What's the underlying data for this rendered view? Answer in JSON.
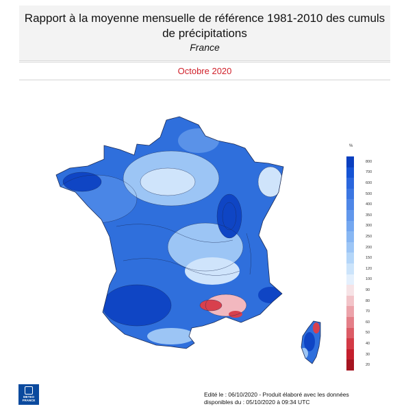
{
  "header": {
    "title": "Rapport à la moyenne mensuelle de référence 1981-2010 des cumuls de précipitations",
    "subtitle": "France"
  },
  "period": "Octobre 2020",
  "legend": {
    "unit": "%",
    "levels": [
      {
        "label": "800",
        "color": "#0a3fbf"
      },
      {
        "label": "700",
        "color": "#1553d4"
      },
      {
        "label": "600",
        "color": "#2a66dd"
      },
      {
        "label": "500",
        "color": "#3b76e2"
      },
      {
        "label": "400",
        "color": "#4e86e7"
      },
      {
        "label": "350",
        "color": "#6197ec"
      },
      {
        "label": "300",
        "color": "#74a7f0"
      },
      {
        "label": "250",
        "color": "#88b7f3"
      },
      {
        "label": "200",
        "color": "#9dc6f6"
      },
      {
        "label": "150",
        "color": "#b4d6f9"
      },
      {
        "label": "120",
        "color": "#cce4fb"
      },
      {
        "label": "100",
        "color": "#e4f0fd"
      },
      {
        "label": "90",
        "color": "#f6e3e6"
      },
      {
        "label": "80",
        "color": "#f2c4c9"
      },
      {
        "label": "70",
        "color": "#eca3aa"
      },
      {
        "label": "60",
        "color": "#e47f88"
      },
      {
        "label": "50",
        "color": "#dc5c66"
      },
      {
        "label": "40",
        "color": "#d33a46"
      },
      {
        "label": "30",
        "color": "#c41f2d"
      },
      {
        "label": "20",
        "color": "#a51420"
      }
    ]
  },
  "map": {
    "colors": {
      "base": "#2f6fdc",
      "medium": "#5a92e8",
      "light": "#9cc5f5",
      "pale": "#cfe4fb",
      "dark": "#0f45c4",
      "red": "#d8404d",
      "pink": "#f2b8bf",
      "contour": "#1a2a55"
    }
  },
  "logo": {
    "line1": "METEO",
    "line2": "FRANCE"
  },
  "footer": {
    "line1": "Edité le : 06/10/2020 - Produit élaboré avec les données",
    "line2": "disponibles du : 05/10/2020 à 09:34 UTC"
  }
}
